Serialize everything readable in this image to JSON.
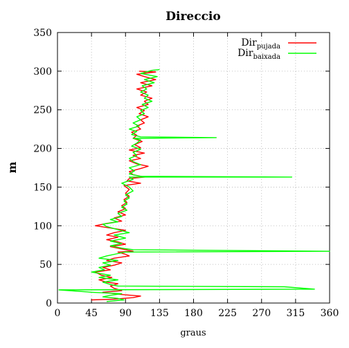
{
  "chart_data": {
    "type": "line",
    "title": "Direccio",
    "xlabel": "graus",
    "ylabel": "m",
    "xlim": [
      0,
      360
    ],
    "ylim": [
      0,
      350
    ],
    "xticks": [
      0,
      45,
      90,
      135,
      180,
      225,
      270,
      315,
      360
    ],
    "yticks": [
      0,
      50,
      100,
      150,
      200,
      250,
      300,
      350
    ],
    "grid": true,
    "legend_position": "top-right",
    "series": [
      {
        "name_main": "Dir",
        "name_sub": "pujada",
        "color": "#ff0000",
        "points": [
          [
            45,
            4
          ],
          [
            75,
            5
          ],
          [
            100,
            7
          ],
          [
            110,
            9
          ],
          [
            85,
            11
          ],
          [
            60,
            14
          ],
          [
            85,
            16
          ],
          [
            75,
            19
          ],
          [
            70,
            22
          ],
          [
            80,
            25
          ],
          [
            65,
            27
          ],
          [
            55,
            30
          ],
          [
            72,
            33
          ],
          [
            58,
            36
          ],
          [
            50,
            40
          ],
          [
            70,
            43
          ],
          [
            60,
            46
          ],
          [
            75,
            49
          ],
          [
            85,
            52
          ],
          [
            65,
            55
          ],
          [
            75,
            58
          ],
          [
            95,
            61
          ],
          [
            90,
            63
          ],
          [
            80,
            66
          ],
          [
            100,
            67
          ],
          [
            85,
            70
          ],
          [
            70,
            73
          ],
          [
            90,
            76
          ],
          [
            80,
            79
          ],
          [
            65,
            82
          ],
          [
            80,
            85
          ],
          [
            65,
            88
          ],
          [
            75,
            91
          ],
          [
            90,
            94
          ],
          [
            70,
            97
          ],
          [
            50,
            100
          ],
          [
            65,
            103
          ],
          [
            85,
            106
          ],
          [
            75,
            110
          ],
          [
            90,
            114
          ],
          [
            80,
            118
          ],
          [
            90,
            122
          ],
          [
            85,
            126
          ],
          [
            92,
            130
          ],
          [
            88,
            134
          ],
          [
            95,
            138
          ],
          [
            90,
            142
          ],
          [
            95,
            147
          ],
          [
            88,
            152
          ],
          [
            110,
            155
          ],
          [
            92,
            158
          ],
          [
            95,
            161
          ],
          [
            115,
            163
          ],
          [
            100,
            166
          ],
          [
            95,
            170
          ],
          [
            110,
            174
          ],
          [
            120,
            177
          ],
          [
            105,
            180
          ],
          [
            95,
            184
          ],
          [
            110,
            187
          ],
          [
            100,
            191
          ],
          [
            115,
            194
          ],
          [
            95,
            198
          ],
          [
            110,
            201
          ],
          [
            102,
            205
          ],
          [
            112,
            209
          ],
          [
            100,
            213
          ],
          [
            105,
            217
          ],
          [
            98,
            221
          ],
          [
            110,
            225
          ],
          [
            105,
            229
          ],
          [
            115,
            233
          ],
          [
            110,
            237
          ],
          [
            120,
            241
          ],
          [
            108,
            245
          ],
          [
            115,
            249
          ],
          [
            105,
            253
          ],
          [
            120,
            257
          ],
          [
            115,
            261
          ],
          [
            125,
            265
          ],
          [
            110,
            269
          ],
          [
            118,
            273
          ],
          [
            105,
            277
          ],
          [
            125,
            281
          ],
          [
            110,
            285
          ],
          [
            130,
            289
          ],
          [
            115,
            293
          ],
          [
            105,
            296
          ],
          [
            130,
            299
          ],
          [
            108,
            300
          ]
        ]
      },
      {
        "name_main": "Dir",
        "name_sub": "baixada",
        "color": "#00ff00",
        "points": [
          [
            65,
            2
          ],
          [
            88,
            4
          ],
          [
            80,
            6
          ],
          [
            60,
            8
          ],
          [
            70,
            10
          ],
          [
            85,
            12
          ],
          [
            45,
            14
          ],
          [
            2,
            17
          ],
          [
            340,
            18
          ],
          [
            300,
            21
          ],
          [
            80,
            22
          ],
          [
            70,
            24
          ],
          [
            60,
            27
          ],
          [
            80,
            30
          ],
          [
            55,
            33
          ],
          [
            70,
            36
          ],
          [
            45,
            40
          ],
          [
            62,
            43
          ],
          [
            55,
            46
          ],
          [
            70,
            49
          ],
          [
            60,
            52
          ],
          [
            80,
            55
          ],
          [
            55,
            58
          ],
          [
            65,
            61
          ],
          [
            80,
            64
          ],
          [
            90,
            66
          ],
          [
            360,
            67
          ],
          [
            100,
            69
          ],
          [
            85,
            71
          ],
          [
            70,
            74
          ],
          [
            85,
            77
          ],
          [
            70,
            80
          ],
          [
            90,
            84
          ],
          [
            75,
            88
          ],
          [
            95,
            91
          ],
          [
            80,
            95
          ],
          [
            65,
            99
          ],
          [
            60,
            102
          ],
          [
            80,
            105
          ],
          [
            70,
            108
          ],
          [
            85,
            112
          ],
          [
            80,
            116
          ],
          [
            92,
            120
          ],
          [
            85,
            124
          ],
          [
            92,
            128
          ],
          [
            88,
            132
          ],
          [
            95,
            136
          ],
          [
            90,
            140
          ],
          [
            100,
            145
          ],
          [
            95,
            150
          ],
          [
            85,
            155
          ],
          [
            100,
            160
          ],
          [
            95,
            163
          ],
          [
            310,
            163
          ],
          [
            110,
            164
          ],
          [
            95,
            167
          ],
          [
            102,
            171
          ],
          [
            95,
            175
          ],
          [
            110,
            179
          ],
          [
            100,
            183
          ],
          [
            95,
            187
          ],
          [
            105,
            191
          ],
          [
            100,
            195
          ],
          [
            110,
            199
          ],
          [
            98,
            203
          ],
          [
            105,
            207
          ],
          [
            110,
            211
          ],
          [
            100,
            213
          ],
          [
            210,
            214
          ],
          [
            110,
            215
          ],
          [
            98,
            218
          ],
          [
            105,
            222
          ],
          [
            95,
            225
          ],
          [
            108,
            229
          ],
          [
            100,
            233
          ],
          [
            110,
            237
          ],
          [
            105,
            241
          ],
          [
            115,
            245
          ],
          [
            110,
            249
          ],
          [
            120,
            253
          ],
          [
            112,
            257
          ],
          [
            125,
            261
          ],
          [
            115,
            265
          ],
          [
            120,
            269
          ],
          [
            110,
            273
          ],
          [
            118,
            277
          ],
          [
            112,
            281
          ],
          [
            128,
            285
          ],
          [
            115,
            289
          ],
          [
            132,
            293
          ],
          [
            110,
            297
          ],
          [
            125,
            301
          ],
          [
            135,
            302
          ]
        ]
      }
    ]
  }
}
